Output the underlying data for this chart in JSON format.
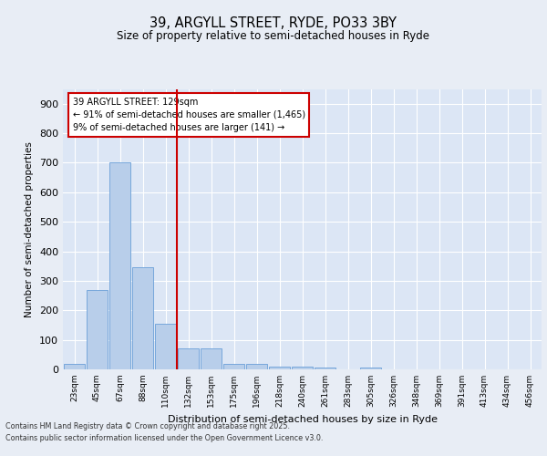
{
  "title1": "39, ARGYLL STREET, RYDE, PO33 3BY",
  "title2": "Size of property relative to semi-detached houses in Ryde",
  "xlabel": "Distribution of semi-detached houses by size in Ryde",
  "ylabel": "Number of semi-detached properties",
  "categories": [
    "23sqm",
    "45sqm",
    "67sqm",
    "88sqm",
    "110sqm",
    "132sqm",
    "153sqm",
    "175sqm",
    "196sqm",
    "218sqm",
    "240sqm",
    "261sqm",
    "283sqm",
    "305sqm",
    "326sqm",
    "348sqm",
    "369sqm",
    "391sqm",
    "413sqm",
    "434sqm",
    "456sqm"
  ],
  "values": [
    20,
    270,
    700,
    345,
    155,
    70,
    70,
    20,
    20,
    10,
    10,
    5,
    0,
    5,
    0,
    0,
    0,
    0,
    0,
    0,
    0
  ],
  "bar_color": "#b8ceea",
  "bar_edge_color": "#6a9fd8",
  "vline_index": 4.5,
  "annotation_text_line1": "39 ARGYLL STREET: 129sqm",
  "annotation_text_line2": "← 91% of semi-detached houses are smaller (1,465)",
  "annotation_text_line3": "9% of semi-detached houses are larger (141) →",
  "vline_color": "#cc0000",
  "ylim": [
    0,
    950
  ],
  "yticks": [
    0,
    100,
    200,
    300,
    400,
    500,
    600,
    700,
    800,
    900
  ],
  "bg_color": "#e8edf5",
  "plot_bg_color": "#dce6f5",
  "footer1": "Contains HM Land Registry data © Crown copyright and database right 2025.",
  "footer2": "Contains public sector information licensed under the Open Government Licence v3.0."
}
